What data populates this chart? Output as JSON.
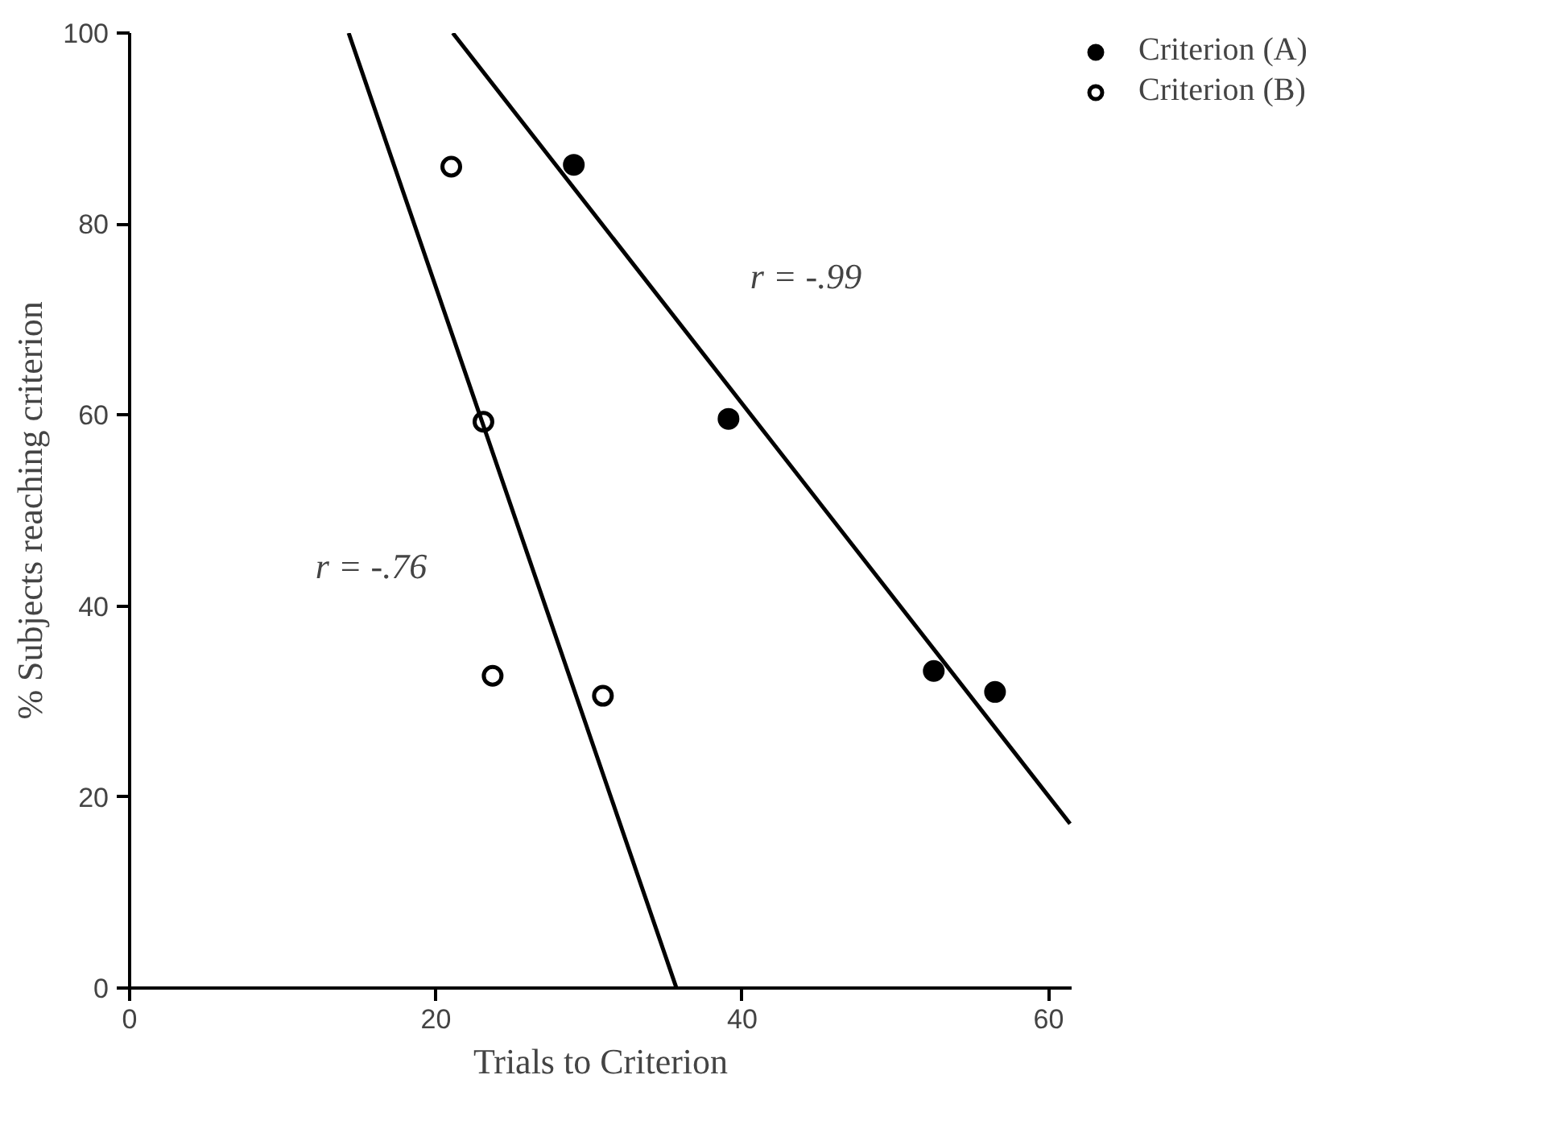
{
  "chart_data": {
    "type": "scatter",
    "xlabel": "Trials to Criterion",
    "ylabel": "% Subjects reaching criterion",
    "xlim": [
      0,
      61.5
    ],
    "ylim": [
      0,
      100
    ],
    "xticks": [
      0,
      20,
      40,
      60
    ],
    "yticks": [
      0,
      20,
      40,
      60,
      80,
      100
    ],
    "grid": false,
    "legend": "top right",
    "series": [
      {
        "name": "Criterion (A)",
        "color": "#000000",
        "marker": "circle",
        "x": [
          29.0,
          39.1,
          52.5,
          56.5
        ],
        "values": [
          86.2,
          59.6,
          33.2,
          31.0
        ]
      },
      {
        "name": "Criterion (B)",
        "color": "#000000",
        "marker": "circle_open",
        "x": [
          21.0,
          23.1,
          23.7,
          30.9
        ],
        "values": [
          86.0,
          59.3,
          32.7,
          30.6
        ]
      },
      {
        "type": "line",
        "color": "#000000",
        "x": [
          21.1,
          61.4
        ],
        "values": [
          100,
          17.2
        ]
      },
      {
        "type": "line",
        "color": "#000000",
        "x": [
          14.3,
          35.7
        ],
        "values": [
          100,
          0
        ]
      }
    ],
    "annotations": [
      "r = -.99",
      "r = -.76"
    ]
  }
}
